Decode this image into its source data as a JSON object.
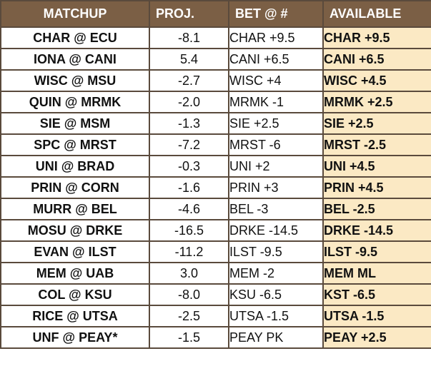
{
  "headers": {
    "matchup": "MATCHUP",
    "proj": "PROJ.",
    "bet": "BET @ #",
    "available": "AVAILABLE"
  },
  "rows": [
    {
      "matchup": "CHAR @ ECU",
      "proj": "-8.1",
      "bet": "CHAR +9.5",
      "available": "CHAR +9.5"
    },
    {
      "matchup": "IONA @ CANI",
      "proj": "5.4",
      "bet": "CANI +6.5",
      "available": "CANI +6.5"
    },
    {
      "matchup": "WISC @ MSU",
      "proj": "-2.7",
      "bet": "WISC +4",
      "available": "WISC +4.5"
    },
    {
      "matchup": "QUIN @ MRMK",
      "proj": "-2.0",
      "bet": "MRMK -1",
      "available": "MRMK +2.5"
    },
    {
      "matchup": "SIE @ MSM",
      "proj": "-1.3",
      "bet": "SIE +2.5",
      "available": "SIE +2.5"
    },
    {
      "matchup": "SPC @ MRST",
      "proj": "-7.2",
      "bet": "MRST -6",
      "available": "MRST -2.5"
    },
    {
      "matchup": "UNI @ BRAD",
      "proj": "-0.3",
      "bet": "UNI +2",
      "available": "UNI +4.5"
    },
    {
      "matchup": "PRIN @ CORN",
      "proj": "-1.6",
      "bet": "PRIN +3",
      "available": "PRIN +4.5"
    },
    {
      "matchup": "MURR @ BEL",
      "proj": "-4.6",
      "bet": "BEL -3",
      "available": "BEL -2.5"
    },
    {
      "matchup": "MOSU @ DRKE",
      "proj": "-16.5",
      "bet": "DRKE -14.5",
      "available": "DRKE -14.5"
    },
    {
      "matchup": "EVAN @ ILST",
      "proj": "-11.2",
      "bet": "ILST -9.5",
      "available": "ILST -9.5"
    },
    {
      "matchup": "MEM @ UAB",
      "proj": "3.0",
      "bet": "MEM -2",
      "available": "MEM ML"
    },
    {
      "matchup": "COL @ KSU",
      "proj": "-8.0",
      "bet": "KSU -6.5",
      "available": "KST -6.5"
    },
    {
      "matchup": "RICE @ UTSA",
      "proj": "-2.5",
      "bet": "UTSA -1.5",
      "available": "UTSA -1.5"
    },
    {
      "matchup": "UNF @ PEAY*",
      "proj": "-1.5",
      "bet": "PEAY PK",
      "available": "PEAY +2.5"
    }
  ],
  "colors": {
    "header_bg": "#7b5f45",
    "header_text": "#ffffff",
    "available_bg": "#fbe9c4",
    "border": "#5a4a3c"
  }
}
